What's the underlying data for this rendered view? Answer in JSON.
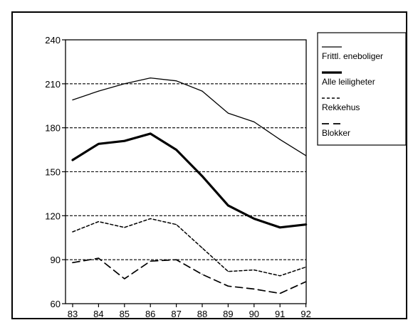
{
  "chart_data": {
    "type": "line",
    "x": [
      "83",
      "84",
      "85",
      "86",
      "87",
      "88",
      "89",
      "90",
      "91",
      "92"
    ],
    "ylim": [
      60,
      240
    ],
    "yticks": [
      60,
      90,
      120,
      150,
      180,
      210,
      240
    ],
    "grid": "dashed horizontal at 90, 120, 150, 180, 210",
    "legend": "top-right",
    "series": [
      {
        "name": "Frittl. eneboliger",
        "style": "thin-solid",
        "values": [
          199,
          205,
          210,
          214,
          212,
          205,
          190,
          184,
          172,
          161
        ]
      },
      {
        "name": "Alle leiligheter",
        "style": "thick-solid",
        "values": [
          158,
          169,
          171,
          176,
          165,
          147,
          127,
          118,
          112,
          114
        ]
      },
      {
        "name": "Rekkehus",
        "style": "short-dash",
        "values": [
          109,
          116,
          112,
          118,
          114,
          98,
          82,
          83,
          79,
          85
        ]
      },
      {
        "name": "Blokker",
        "style": "long-dash",
        "values": [
          88,
          91,
          77,
          89,
          90,
          80,
          72,
          70,
          67,
          75
        ]
      }
    ]
  }
}
